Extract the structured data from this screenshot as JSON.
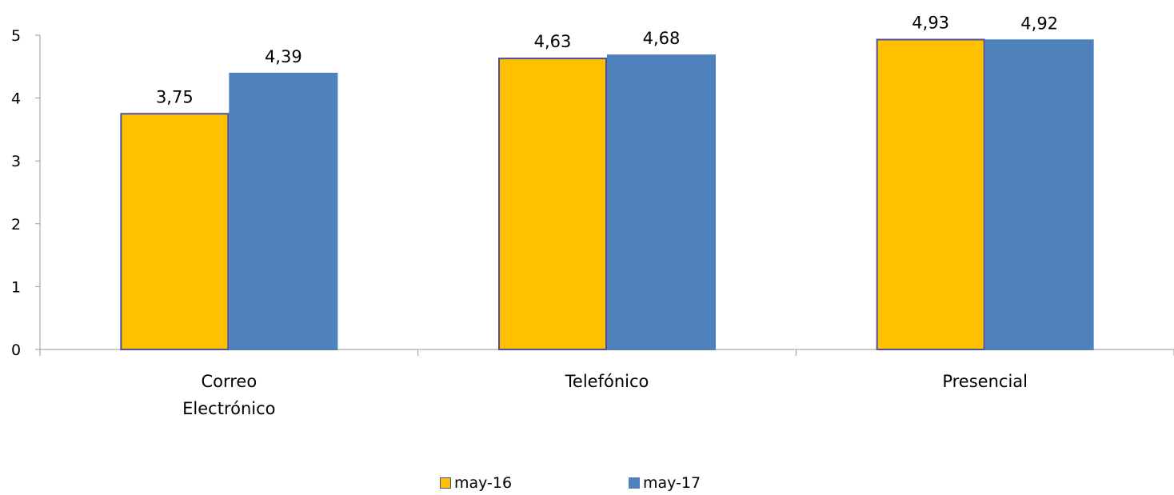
{
  "chart_data": {
    "type": "bar",
    "categories": [
      [
        "Correo",
        "Electrónico"
      ],
      [
        "Telefónico"
      ],
      [
        "Presencial"
      ]
    ],
    "series": [
      {
        "name": "may-16",
        "values": [
          3.75,
          4.63,
          4.93
        ],
        "labels": [
          "3,75",
          "4,63",
          "4,93"
        ],
        "color": "#FFC000",
        "border": "#4F4F9F"
      },
      {
        "name": "may-17",
        "values": [
          4.39,
          4.68,
          4.92
        ],
        "labels": [
          "4,39",
          "4,68",
          "4,92"
        ],
        "color": "#4F81BD",
        "border": "#4F81BD"
      }
    ],
    "ylim": [
      0,
      5
    ],
    "yticks": [
      "0",
      "1",
      "2",
      "3",
      "4",
      "5"
    ],
    "grid": false,
    "legend_position": "bottom",
    "axis_color": "#9A9A9A"
  }
}
